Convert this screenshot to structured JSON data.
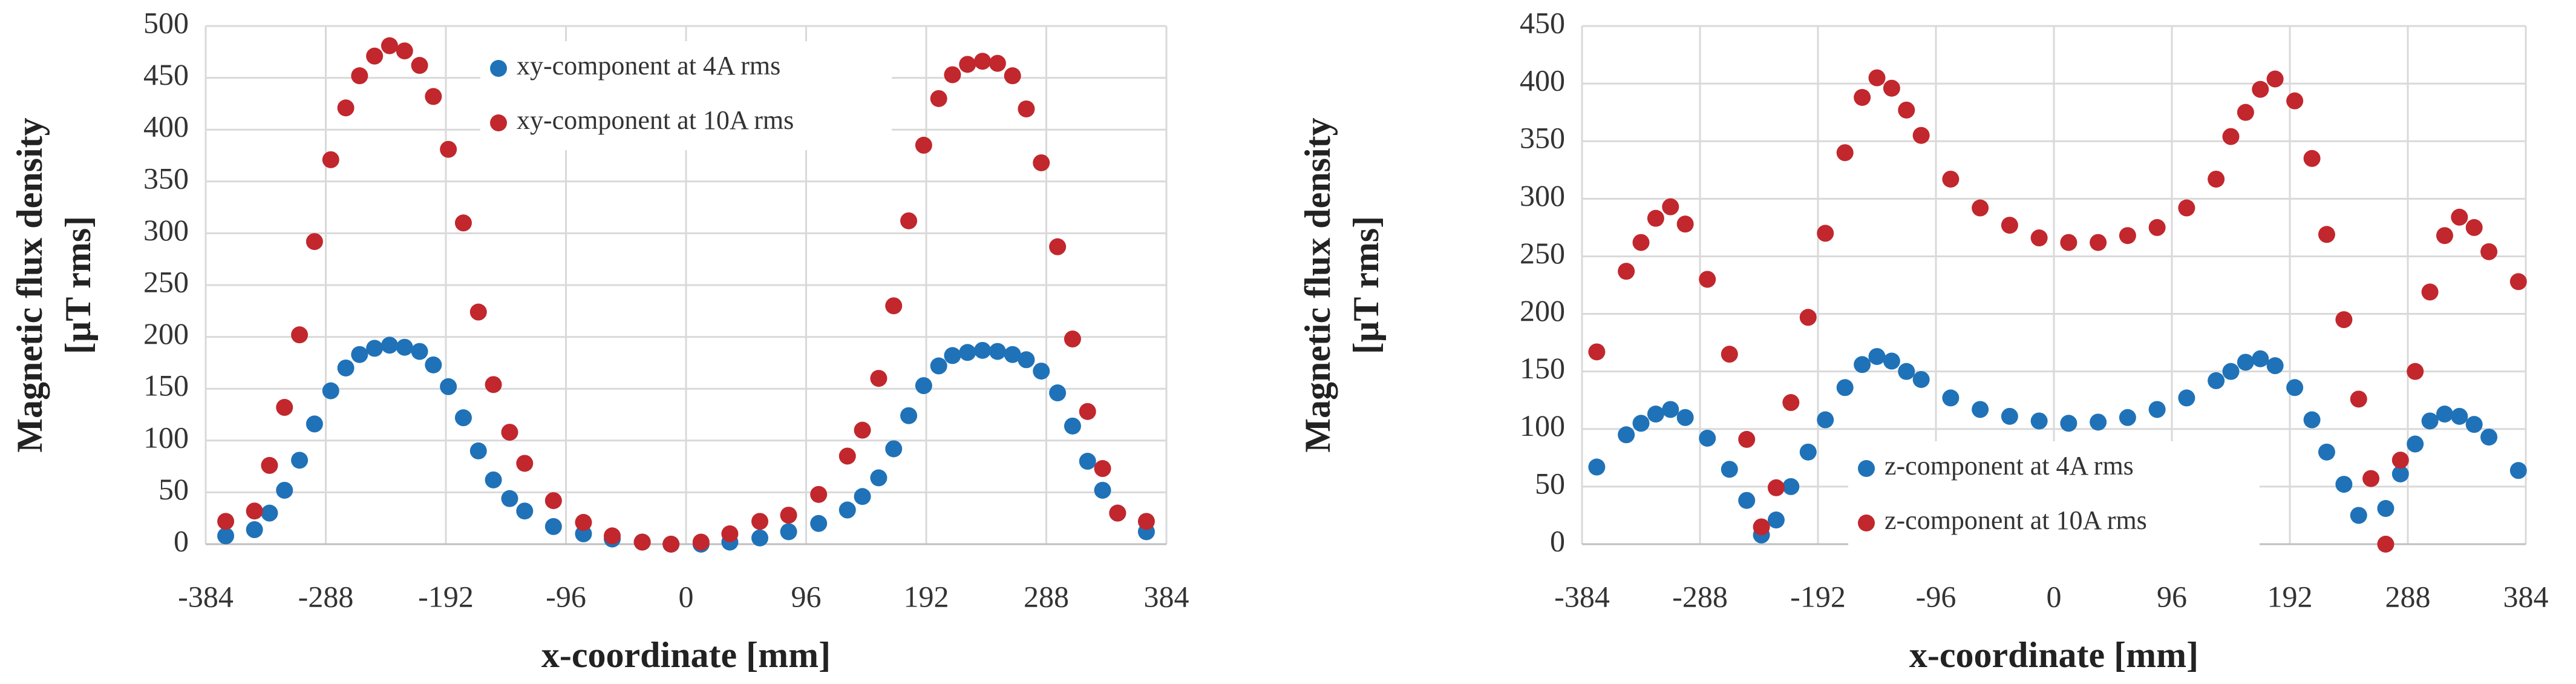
{
  "chart_data": [
    {
      "type": "scatter",
      "xlabel": "x-coordinate [mm]",
      "ylabel": [
        "Magnetic flux density",
        "[µT rms]"
      ],
      "x": [
        -368,
        -345,
        -333,
        -321,
        -309,
        -297,
        -284,
        -272,
        -261,
        -249,
        -237,
        -225,
        -213,
        -202,
        -190,
        -178,
        -166,
        -154,
        -141,
        -129,
        -106,
        -82,
        -59,
        -35,
        -12,
        12,
        35,
        59,
        82,
        106,
        129,
        141,
        154,
        166,
        178,
        190,
        202,
        213,
        225,
        237,
        249,
        261,
        272,
        284,
        297,
        309,
        321,
        333,
        345,
        368
      ],
      "series": [
        {
          "name": "xy-component at 4A rms",
          "color": "#1f72b8",
          "values": [
            8,
            14,
            30,
            52,
            81,
            116,
            148,
            170,
            183,
            189,
            192,
            190,
            186,
            173,
            152,
            122,
            90,
            62,
            44,
            32,
            17,
            10,
            5,
            2,
            0,
            0,
            2,
            6,
            12,
            20,
            33,
            46,
            64,
            92,
            124,
            153,
            172,
            182,
            185,
            187,
            186,
            183,
            178,
            167,
            146,
            114,
            80,
            52,
            30,
            12
          ]
        },
        {
          "name": "xy-component at 10A rms",
          "color": "#c1272d",
          "values": [
            22,
            32,
            76,
            132,
            202,
            292,
            371,
            421,
            452,
            471,
            481,
            476,
            462,
            432,
            381,
            310,
            224,
            154,
            108,
            78,
            42,
            21,
            8,
            2,
            0,
            2,
            10,
            22,
            28,
            48,
            85,
            110,
            160,
            230,
            312,
            385,
            430,
            453,
            463,
            466,
            464,
            452,
            420,
            368,
            287,
            198,
            128,
            73,
            30,
            22
          ]
        }
      ],
      "xlim": [
        -384,
        384
      ],
      "xticks": [
        -384,
        -288,
        -192,
        -96,
        0,
        96,
        192,
        288,
        384
      ],
      "ylim": [
        0,
        500
      ],
      "yticks": [
        0,
        50,
        100,
        150,
        200,
        250,
        300,
        350,
        400,
        450,
        500
      ],
      "grid": true,
      "legend": "upper center"
    },
    {
      "type": "scatter",
      "xlabel": "x-coordinate [mm]",
      "ylabel": [
        "Magnetic flux density",
        "[µT rms]"
      ],
      "x": [
        -372,
        -348,
        -336,
        -324,
        -312,
        -300,
        -282,
        -264,
        -250,
        -238,
        -226,
        -214,
        -200,
        -186,
        -170,
        -156,
        -144,
        -132,
        -120,
        -108,
        -84,
        -60,
        -36,
        -12,
        12,
        36,
        60,
        84,
        108,
        132,
        144,
        156,
        168,
        180,
        196,
        210,
        222,
        236,
        248,
        258,
        270,
        282,
        294,
        306,
        318,
        330,
        342,
        354,
        378
      ],
      "series": [
        {
          "name": "z-component at 4A rms",
          "color": "#1f72b8",
          "values": [
            67,
            95,
            105,
            113,
            117,
            110,
            92,
            65,
            38,
            8,
            21,
            50,
            80,
            108,
            136,
            156,
            163,
            159,
            150,
            143,
            127,
            117,
            111,
            107,
            105,
            106,
            110,
            117,
            127,
            142,
            150,
            158,
            161,
            155,
            136,
            108,
            80,
            52,
            25,
            null,
            31,
            61,
            87,
            107,
            113,
            111,
            104,
            93,
            64
          ]
        },
        {
          "name": "z-component at 10A rms",
          "color": "#c1272d",
          "values": [
            167,
            237,
            262,
            283,
            293,
            278,
            230,
            165,
            91,
            15,
            49,
            123,
            197,
            270,
            340,
            388,
            405,
            396,
            377,
            355,
            317,
            292,
            277,
            266,
            262,
            262,
            268,
            275,
            292,
            317,
            354,
            375,
            395,
            404,
            385,
            335,
            269,
            195,
            126,
            57,
            0,
            73,
            150,
            219,
            268,
            284,
            275,
            254,
            228
          ]
        }
      ],
      "xlim": [
        -384,
        384
      ],
      "xticks": [
        -384,
        -288,
        -192,
        -96,
        0,
        96,
        192,
        288,
        384
      ],
      "ylim": [
        0,
        450
      ],
      "yticks": [
        0,
        50,
        100,
        150,
        200,
        250,
        300,
        350,
        400,
        450
      ],
      "grid": true,
      "legend": "lower center"
    }
  ]
}
